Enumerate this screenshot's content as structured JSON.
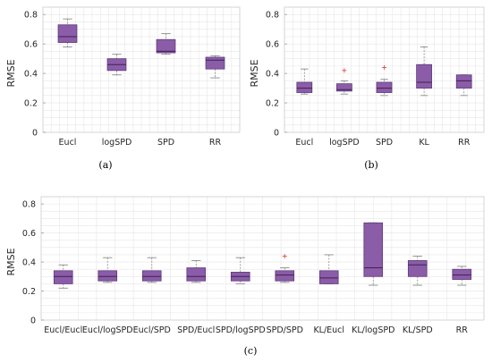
{
  "colors": {
    "box_fill": "#8b5ca8",
    "box_edge": "#5e3a7a",
    "median": "#3d2152",
    "whisker": "#8a8a8a",
    "outlier": "#e8494f",
    "grid": "#e6e6e6",
    "axis": "#cfcfcf"
  },
  "chart_data": [
    {
      "type": "box",
      "caption": "(a)",
      "ylabel": "RMSE",
      "ylim": [
        0,
        0.85
      ],
      "yticks": [
        "0",
        "0.2",
        "0.4",
        "0.6",
        "0.8"
      ],
      "grid": true,
      "categories": [
        "Eucl",
        "logSPD",
        "SPD",
        "RR"
      ],
      "boxes": [
        {
          "min": 0.58,
          "q1": 0.61,
          "median": 0.65,
          "q3": 0.73,
          "max": 0.77,
          "outliers": []
        },
        {
          "min": 0.39,
          "q1": 0.42,
          "median": 0.46,
          "q3": 0.5,
          "max": 0.53,
          "outliers": []
        },
        {
          "min": 0.53,
          "q1": 0.54,
          "median": 0.55,
          "q3": 0.63,
          "max": 0.67,
          "outliers": []
        },
        {
          "min": 0.37,
          "q1": 0.43,
          "median": 0.49,
          "q3": 0.51,
          "max": 0.52,
          "outliers": []
        }
      ]
    },
    {
      "type": "box",
      "caption": "(b)",
      "ylabel": "RMSE",
      "ylim": [
        0,
        0.85
      ],
      "yticks": [
        "0",
        "0.2",
        "0.4",
        "0.6",
        "0.8"
      ],
      "grid": true,
      "categories": [
        "Eucl",
        "logSPD",
        "SPD",
        "KL",
        "RR"
      ],
      "boxes": [
        {
          "min": 0.26,
          "q1": 0.27,
          "median": 0.3,
          "q3": 0.34,
          "max": 0.43,
          "outliers": []
        },
        {
          "min": 0.26,
          "q1": 0.28,
          "median": 0.29,
          "q3": 0.33,
          "max": 0.35,
          "outliers": [
            0.42
          ]
        },
        {
          "min": 0.25,
          "q1": 0.27,
          "median": 0.3,
          "q3": 0.34,
          "max": 0.36,
          "outliers": [
            0.44
          ]
        },
        {
          "min": 0.25,
          "q1": 0.3,
          "median": 0.34,
          "q3": 0.46,
          "max": 0.58,
          "outliers": []
        },
        {
          "min": 0.25,
          "q1": 0.3,
          "median": 0.35,
          "q3": 0.39,
          "max": 0.39,
          "outliers": []
        }
      ]
    },
    {
      "type": "box",
      "caption": "(c)",
      "ylabel": "RMSE",
      "ylim": [
        0,
        0.85
      ],
      "yticks": [
        "0",
        "0.2",
        "0.4",
        "0.6",
        "0.8"
      ],
      "grid": true,
      "categories": [
        "Eucl/Eucl",
        "Eucl/logSPD",
        "Eucl/SPD",
        "SPD/Eucl",
        "SPD/logSPD",
        "SPD/SPD",
        "KL/Eucl",
        "KL/logSPD",
        "KL/SPD",
        "RR"
      ],
      "boxes": [
        {
          "min": 0.22,
          "q1": 0.25,
          "median": 0.3,
          "q3": 0.34,
          "max": 0.38,
          "outliers": []
        },
        {
          "min": 0.26,
          "q1": 0.27,
          "median": 0.3,
          "q3": 0.34,
          "max": 0.43,
          "outliers": []
        },
        {
          "min": 0.26,
          "q1": 0.27,
          "median": 0.3,
          "q3": 0.34,
          "max": 0.43,
          "outliers": []
        },
        {
          "min": 0.26,
          "q1": 0.27,
          "median": 0.3,
          "q3": 0.36,
          "max": 0.41,
          "outliers": []
        },
        {
          "min": 0.25,
          "q1": 0.27,
          "median": 0.3,
          "q3": 0.33,
          "max": 0.43,
          "outliers": []
        },
        {
          "min": 0.26,
          "q1": 0.27,
          "median": 0.31,
          "q3": 0.34,
          "max": 0.36,
          "outliers": [
            0.44
          ]
        },
        {
          "min": 0.25,
          "q1": 0.25,
          "median": 0.29,
          "q3": 0.34,
          "max": 0.45,
          "outliers": []
        },
        {
          "min": 0.24,
          "q1": 0.3,
          "median": 0.36,
          "q3": 0.67,
          "max": 0.67,
          "outliers": []
        },
        {
          "min": 0.24,
          "q1": 0.3,
          "median": 0.38,
          "q3": 0.41,
          "max": 0.44,
          "outliers": []
        },
        {
          "min": 0.24,
          "q1": 0.28,
          "median": 0.31,
          "q3": 0.35,
          "max": 0.37,
          "outliers": []
        }
      ]
    }
  ]
}
